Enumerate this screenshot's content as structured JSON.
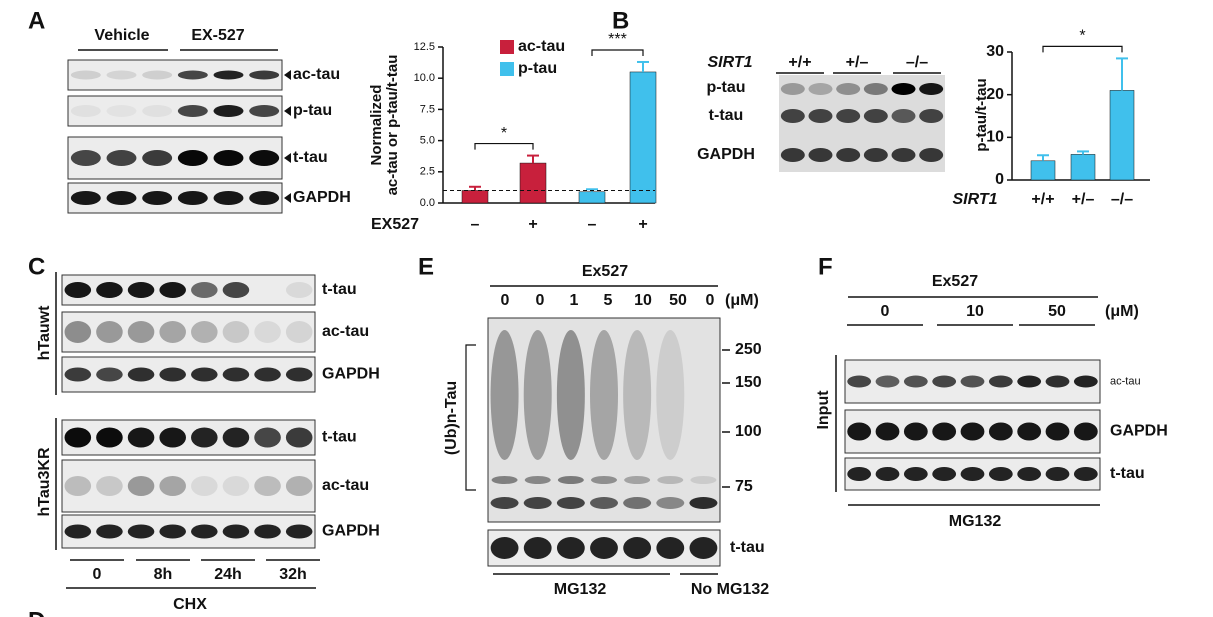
{
  "panel_a": {
    "letter": "A",
    "groups": [
      "Vehicle",
      "EX-527"
    ],
    "rows": [
      "ac-tau",
      "p-tau",
      "t-tau",
      "GAPDH"
    ]
  },
  "panel_b": {
    "letter": "B",
    "genotype_label": "SIRT1",
    "genotypes": [
      "+/+",
      "+/–",
      "–/–"
    ],
    "rows": [
      "p-tau",
      "t-tau",
      "GAPDH"
    ]
  },
  "panel_c": {
    "letter": "C",
    "groups": [
      "hTauwt",
      "hTau3KR"
    ],
    "rows_wt": [
      "t-tau",
      "ac-tau",
      "GAPDH"
    ],
    "rows_3kr": [
      "t-tau",
      "ac-tau",
      "GAPDH"
    ],
    "times": [
      "0",
      "8h",
      "24h",
      "32h"
    ],
    "treatment": "CHX"
  },
  "panel_d": {
    "letter": "D"
  },
  "panel_e": {
    "letter": "E",
    "treatment": "Ex527",
    "doses": [
      "0",
      "0",
      "1",
      "5",
      "10",
      "50",
      "0"
    ],
    "unit": "(μM)",
    "markers": [
      "250",
      "150",
      "100",
      "75"
    ],
    "smear_label": "(Ub)n-Tau",
    "row": "t-tau",
    "conditions": [
      "MG132",
      "No MG132"
    ]
  },
  "panel_f": {
    "letter": "F",
    "treatment": "Ex527",
    "doses": [
      "0",
      "10",
      "50"
    ],
    "unit": "(μM)",
    "section": "Input",
    "rows": [
      "ac-tau",
      "GAPDH",
      "t-tau"
    ],
    "condition": "MG132"
  },
  "chart_data": [
    {
      "type": "bar",
      "y_label": [
        "Normalized",
        "ac-tau or p-tau/t-tau"
      ],
      "x_row_label": "EX527",
      "categories": [
        "–",
        "+",
        "–",
        "+"
      ],
      "series": [
        {
          "name": "ac-tau",
          "color": "#c8203c",
          "values": [
            1.0,
            3.2,
            null,
            null
          ],
          "errors": [
            0.3,
            0.6,
            null,
            null
          ]
        },
        {
          "name": "p-tau",
          "color": "#40c0ec",
          "values": [
            null,
            null,
            0.9,
            10.5
          ],
          "errors": [
            null,
            null,
            0.2,
            0.8
          ]
        }
      ],
      "ylim": [
        0,
        12.5
      ],
      "yticks": [
        {
          "value": 0,
          "label": "0.0"
        },
        {
          "value": 2.5,
          "label": "2.5"
        },
        {
          "value": 5,
          "label": "5.0"
        },
        {
          "value": 7.5,
          "label": "7.5"
        },
        {
          "value": 10,
          "label": "10.0"
        },
        {
          "value": 12.5,
          "label": "12.5"
        }
      ],
      "reference_line": 1,
      "significance": [
        "*",
        "***"
      ]
    },
    {
      "type": "bar",
      "y_label": [
        "p-tau/t-tau"
      ],
      "x_row_label": "SIRT1",
      "categories": [
        "+/+",
        "+/–",
        "–/–"
      ],
      "values": [
        4.5,
        6.0,
        21.0
      ],
      "errors": [
        1.3,
        0.7,
        7.5
      ],
      "color": "#40c0ec",
      "ylim": [
        0,
        30
      ],
      "yticks": [
        0,
        10,
        20,
        30
      ],
      "significance": [
        "*"
      ]
    }
  ]
}
